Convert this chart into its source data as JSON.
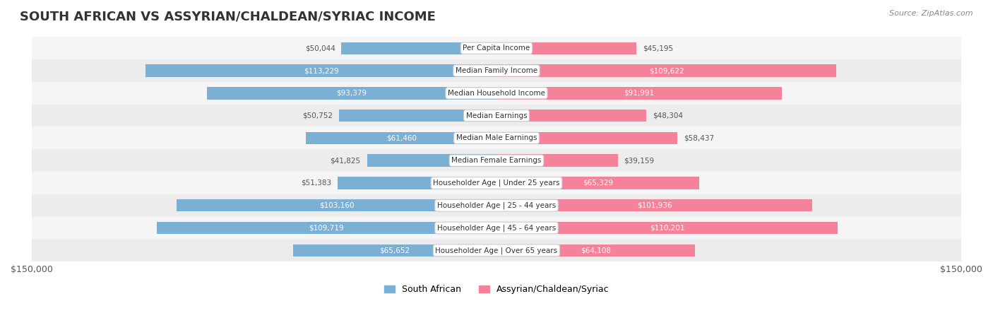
{
  "title": "SOUTH AFRICAN VS ASSYRIAN/CHALDEAN/SYRIAC INCOME",
  "source": "Source: ZipAtlas.com",
  "categories": [
    "Per Capita Income",
    "Median Family Income",
    "Median Household Income",
    "Median Earnings",
    "Median Male Earnings",
    "Median Female Earnings",
    "Householder Age | Under 25 years",
    "Householder Age | 25 - 44 years",
    "Householder Age | 45 - 64 years",
    "Householder Age | Over 65 years"
  ],
  "south_african_values": [
    50044,
    113229,
    93379,
    50752,
    61460,
    41825,
    51383,
    103160,
    109719,
    65652
  ],
  "assyrian_values": [
    45195,
    109622,
    91991,
    48304,
    58437,
    39159,
    65329,
    101936,
    110201,
    64108
  ],
  "max_value": 150000,
  "south_african_color": "#7bafd4",
  "assyrian_color": "#f4829b",
  "label_color_inside": "#ffffff",
  "label_color_outside": "#555555",
  "row_bg_light": "#f5f5f5",
  "row_bg_dark": "#ececec",
  "bar_height": 0.55,
  "legend_south_african": "South African",
  "legend_assyrian": "Assyrian/Chaldean/Syriac"
}
